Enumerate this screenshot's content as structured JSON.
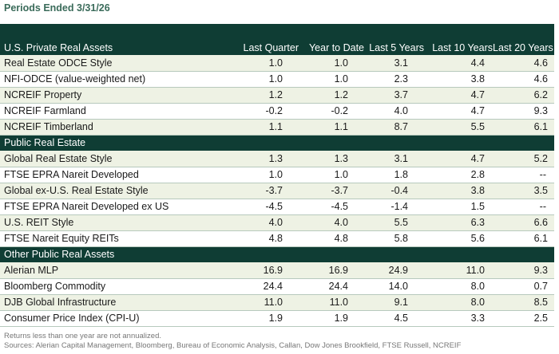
{
  "title": "Periods Ended 3/31/26",
  "columns": [
    "Last Quarter",
    "Year to Date",
    "Last 5 Years",
    "Last 10 Years",
    "Last 20 Years"
  ],
  "sections": [
    {
      "name": "U.S. Private Real Assets",
      "rows": [
        {
          "label": "Real Estate ODCE Style",
          "values": [
            "1.0",
            "1.0",
            "3.1",
            "4.4",
            "4.6"
          ]
        },
        {
          "label": "NFI-ODCE (value-weighted net)",
          "values": [
            "1.0",
            "1.0",
            "2.3",
            "3.8",
            "4.6"
          ]
        },
        {
          "label": "NCREIF Property",
          "values": [
            "1.2",
            "1.2",
            "3.7",
            "4.7",
            "6.2"
          ]
        },
        {
          "label": "NCREIF Farmland",
          "values": [
            "-0.2",
            "-0.2",
            "4.0",
            "4.7",
            "9.3"
          ]
        },
        {
          "label": "NCREIF Timberland",
          "values": [
            "1.1",
            "1.1",
            "8.7",
            "5.5",
            "6.1"
          ]
        }
      ]
    },
    {
      "name": "Public Real Estate",
      "rows": [
        {
          "label": "Global Real Estate Style",
          "values": [
            "1.3",
            "1.3",
            "3.1",
            "4.7",
            "5.2"
          ]
        },
        {
          "label": "FTSE EPRA Nareit Developed",
          "values": [
            "1.0",
            "1.0",
            "1.8",
            "2.8",
            "--"
          ]
        },
        {
          "label": "Global ex-U.S. Real Estate Style",
          "values": [
            "-3.7",
            "-3.7",
            "-0.4",
            "3.8",
            "3.5"
          ]
        },
        {
          "label": "FTSE EPRA Nareit Developed ex US",
          "values": [
            "-4.5",
            "-4.5",
            "-1.4",
            "1.5",
            "--"
          ]
        },
        {
          "label": "U.S. REIT Style",
          "values": [
            "4.0",
            "4.0",
            "5.5",
            "6.3",
            "6.6"
          ]
        },
        {
          "label": "FTSE Nareit Equity REITs",
          "values": [
            "4.8",
            "4.8",
            "5.8",
            "5.6",
            "6.1"
          ]
        }
      ]
    },
    {
      "name": "Other Public Real Assets",
      "rows": [
        {
          "label": "Alerian MLP",
          "values": [
            "16.9",
            "16.9",
            "24.9",
            "11.0",
            "9.3"
          ]
        },
        {
          "label": "Bloomberg Commodity",
          "values": [
            "24.4",
            "24.4",
            "14.0",
            "8.0",
            "0.7"
          ]
        },
        {
          "label": "DJB Global Infrastructure",
          "values": [
            "11.0",
            "11.0",
            "9.1",
            "8.0",
            "8.5"
          ]
        },
        {
          "label": "Consumer Price Index (CPI-U)",
          "values": [
            "1.9",
            "1.9",
            "4.5",
            "3.3",
            "2.5"
          ]
        }
      ]
    }
  ],
  "footnotes": [
    "Returns less than one year are not annualized.",
    "Sources: Alerian Capital Management, Bloomberg, Bureau of Economic Analysis, Callan, Dow Jones Brookfield, FTSE Russell, NCREIF"
  ],
  "colors": {
    "header_bg": "#0f3d34",
    "title": "#3a6b5a",
    "row_shade": "#eef2e4",
    "row_rule": "#b7c9bd"
  }
}
